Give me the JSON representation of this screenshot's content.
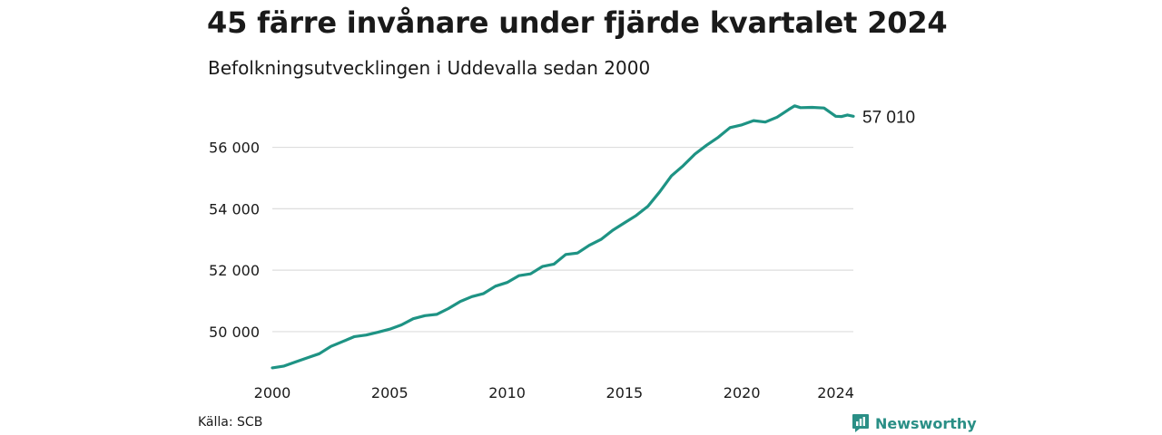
{
  "header": {
    "title": "45 färre invånare under fjärde kvartalet 2024",
    "subtitle": "Befolkningsutvecklingen i Uddevalla sedan 2000"
  },
  "footer": {
    "source": "Källa: SCB",
    "brand": "Newsworthy",
    "brand_color": "#2a8f86"
  },
  "chart_data": {
    "type": "line",
    "title": "45 färre invånare under fjärde kvartalet 2024",
    "subtitle": "Befolkningsutvecklingen i Uddevalla sedan 2000",
    "xlabel": "",
    "ylabel": "",
    "x_ticks": [
      {
        "value": 2000,
        "label": "2000"
      },
      {
        "value": 2005,
        "label": "2005"
      },
      {
        "value": 2010,
        "label": "2010"
      },
      {
        "value": 2015,
        "label": "2015"
      },
      {
        "value": 2020,
        "label": "2020"
      },
      {
        "value": 2024,
        "label": "2024"
      }
    ],
    "y_ticks": [
      {
        "value": 50000,
        "label": "50 000"
      },
      {
        "value": 52000,
        "label": "52 000"
      },
      {
        "value": 54000,
        "label": "54 000"
      },
      {
        "value": 56000,
        "label": "56 000"
      }
    ],
    "xlim": [
      2000,
      2024.75
    ],
    "ylim": [
      48700,
      57550
    ],
    "grid": "horizontal",
    "line_color": "#1e9384",
    "end_label": "57 010",
    "series": [
      {
        "x": [
          2000,
          2000.5,
          2001,
          2001.5,
          2002,
          2002.5,
          2003,
          2003.5,
          2004,
          2004.5,
          2005,
          2005.5,
          2006,
          2006.5,
          2007,
          2007.5,
          2008,
          2008.5,
          2009,
          2009.5,
          2010,
          2010.5,
          2011,
          2011.5,
          2012,
          2012.5,
          2013,
          2013.5,
          2014,
          2014.5,
          2015,
          2015.5,
          2016,
          2016.5,
          2017,
          2017.5,
          2018,
          2018.5,
          2019,
          2019.5,
          2020,
          2020.5,
          2021,
          2021.5,
          2022,
          2022.25,
          2022.5,
          2023,
          2023.5,
          2024,
          2024.25,
          2024.5,
          2024.75
        ],
        "values": [
          48820,
          48880,
          49020,
          49150,
          49280,
          49520,
          49680,
          49840,
          49890,
          49980,
          50080,
          50220,
          50420,
          50520,
          50560,
          50750,
          50980,
          51140,
          51240,
          51480,
          51600,
          51820,
          51880,
          52120,
          52200,
          52510,
          52560,
          52810,
          53000,
          53300,
          53540,
          53780,
          54080,
          54550,
          55070,
          55400,
          55780,
          56070,
          56330,
          56640,
          56730,
          56870,
          56820,
          56980,
          57230,
          57350,
          57290,
          57300,
          57280,
          57010,
          57000,
          57050,
          57010
        ]
      }
    ]
  }
}
